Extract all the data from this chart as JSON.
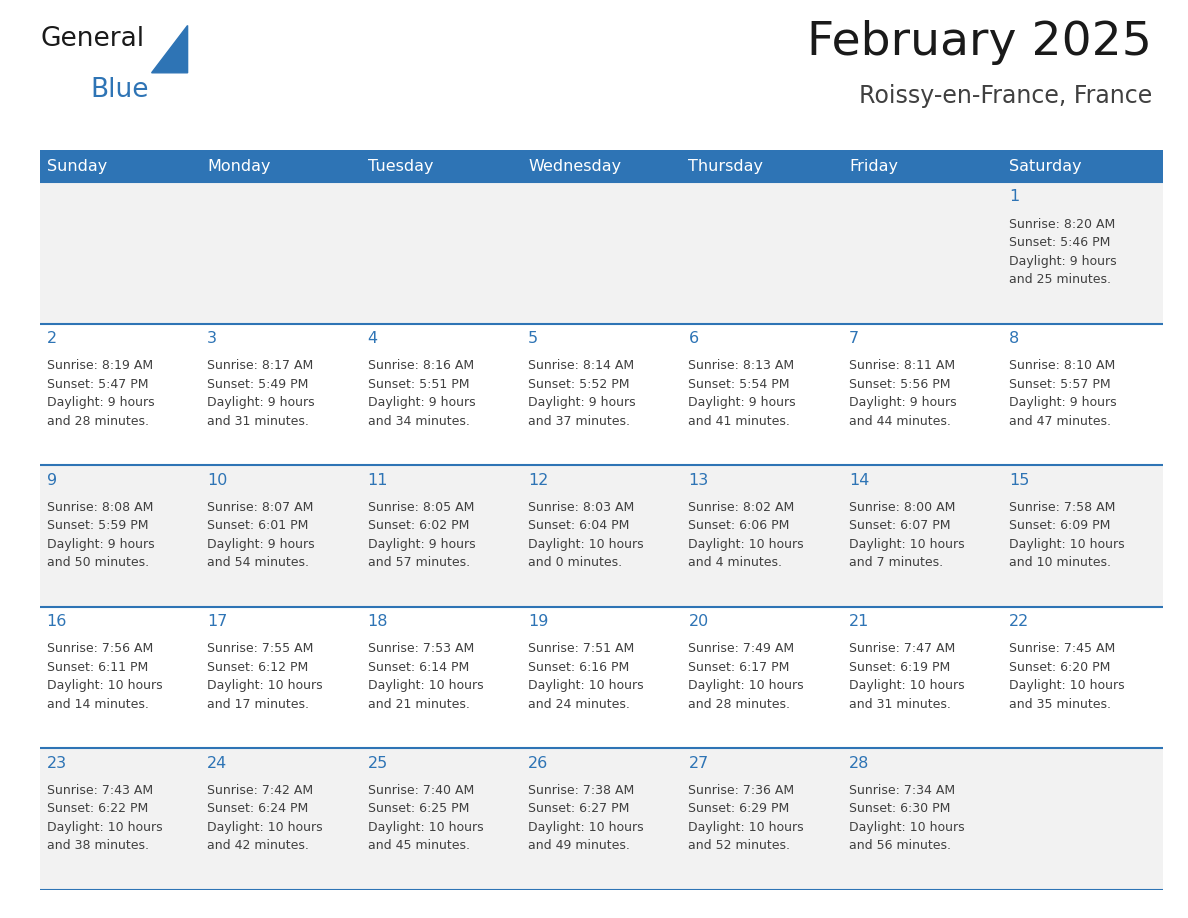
{
  "title": "February 2025",
  "subtitle": "Roissy-en-France, France",
  "days_of_week": [
    "Sunday",
    "Monday",
    "Tuesday",
    "Wednesday",
    "Thursday",
    "Friday",
    "Saturday"
  ],
  "header_bg": "#2E74B5",
  "header_text": "#FFFFFF",
  "row_bg_alt": "#F2F2F2",
  "row_bg_norm": "#FFFFFF",
  "separator_color": "#2E74B5",
  "day_number_color": "#2E74B5",
  "cell_text_color": "#404040",
  "title_color": "#1A1A1A",
  "subtitle_color": "#404040",
  "background_color": "#FFFFFF",
  "logo_black": "#1A1A1A",
  "logo_blue": "#2E74B5",
  "calendar_data": [
    [
      {
        "day": null,
        "info": null
      },
      {
        "day": null,
        "info": null
      },
      {
        "day": null,
        "info": null
      },
      {
        "day": null,
        "info": null
      },
      {
        "day": null,
        "info": null
      },
      {
        "day": null,
        "info": null
      },
      {
        "day": 1,
        "info": "Sunrise: 8:20 AM\nSunset: 5:46 PM\nDaylight: 9 hours\nand 25 minutes."
      }
    ],
    [
      {
        "day": 2,
        "info": "Sunrise: 8:19 AM\nSunset: 5:47 PM\nDaylight: 9 hours\nand 28 minutes."
      },
      {
        "day": 3,
        "info": "Sunrise: 8:17 AM\nSunset: 5:49 PM\nDaylight: 9 hours\nand 31 minutes."
      },
      {
        "day": 4,
        "info": "Sunrise: 8:16 AM\nSunset: 5:51 PM\nDaylight: 9 hours\nand 34 minutes."
      },
      {
        "day": 5,
        "info": "Sunrise: 8:14 AM\nSunset: 5:52 PM\nDaylight: 9 hours\nand 37 minutes."
      },
      {
        "day": 6,
        "info": "Sunrise: 8:13 AM\nSunset: 5:54 PM\nDaylight: 9 hours\nand 41 minutes."
      },
      {
        "day": 7,
        "info": "Sunrise: 8:11 AM\nSunset: 5:56 PM\nDaylight: 9 hours\nand 44 minutes."
      },
      {
        "day": 8,
        "info": "Sunrise: 8:10 AM\nSunset: 5:57 PM\nDaylight: 9 hours\nand 47 minutes."
      }
    ],
    [
      {
        "day": 9,
        "info": "Sunrise: 8:08 AM\nSunset: 5:59 PM\nDaylight: 9 hours\nand 50 minutes."
      },
      {
        "day": 10,
        "info": "Sunrise: 8:07 AM\nSunset: 6:01 PM\nDaylight: 9 hours\nand 54 minutes."
      },
      {
        "day": 11,
        "info": "Sunrise: 8:05 AM\nSunset: 6:02 PM\nDaylight: 9 hours\nand 57 minutes."
      },
      {
        "day": 12,
        "info": "Sunrise: 8:03 AM\nSunset: 6:04 PM\nDaylight: 10 hours\nand 0 minutes."
      },
      {
        "day": 13,
        "info": "Sunrise: 8:02 AM\nSunset: 6:06 PM\nDaylight: 10 hours\nand 4 minutes."
      },
      {
        "day": 14,
        "info": "Sunrise: 8:00 AM\nSunset: 6:07 PM\nDaylight: 10 hours\nand 7 minutes."
      },
      {
        "day": 15,
        "info": "Sunrise: 7:58 AM\nSunset: 6:09 PM\nDaylight: 10 hours\nand 10 minutes."
      }
    ],
    [
      {
        "day": 16,
        "info": "Sunrise: 7:56 AM\nSunset: 6:11 PM\nDaylight: 10 hours\nand 14 minutes."
      },
      {
        "day": 17,
        "info": "Sunrise: 7:55 AM\nSunset: 6:12 PM\nDaylight: 10 hours\nand 17 minutes."
      },
      {
        "day": 18,
        "info": "Sunrise: 7:53 AM\nSunset: 6:14 PM\nDaylight: 10 hours\nand 21 minutes."
      },
      {
        "day": 19,
        "info": "Sunrise: 7:51 AM\nSunset: 6:16 PM\nDaylight: 10 hours\nand 24 minutes."
      },
      {
        "day": 20,
        "info": "Sunrise: 7:49 AM\nSunset: 6:17 PM\nDaylight: 10 hours\nand 28 minutes."
      },
      {
        "day": 21,
        "info": "Sunrise: 7:47 AM\nSunset: 6:19 PM\nDaylight: 10 hours\nand 31 minutes."
      },
      {
        "day": 22,
        "info": "Sunrise: 7:45 AM\nSunset: 6:20 PM\nDaylight: 10 hours\nand 35 minutes."
      }
    ],
    [
      {
        "day": 23,
        "info": "Sunrise: 7:43 AM\nSunset: 6:22 PM\nDaylight: 10 hours\nand 38 minutes."
      },
      {
        "day": 24,
        "info": "Sunrise: 7:42 AM\nSunset: 6:24 PM\nDaylight: 10 hours\nand 42 minutes."
      },
      {
        "day": 25,
        "info": "Sunrise: 7:40 AM\nSunset: 6:25 PM\nDaylight: 10 hours\nand 45 minutes."
      },
      {
        "day": 26,
        "info": "Sunrise: 7:38 AM\nSunset: 6:27 PM\nDaylight: 10 hours\nand 49 minutes."
      },
      {
        "day": 27,
        "info": "Sunrise: 7:36 AM\nSunset: 6:29 PM\nDaylight: 10 hours\nand 52 minutes."
      },
      {
        "day": 28,
        "info": "Sunrise: 7:34 AM\nSunset: 6:30 PM\nDaylight: 10 hours\nand 56 minutes."
      },
      {
        "day": null,
        "info": null
      }
    ]
  ]
}
